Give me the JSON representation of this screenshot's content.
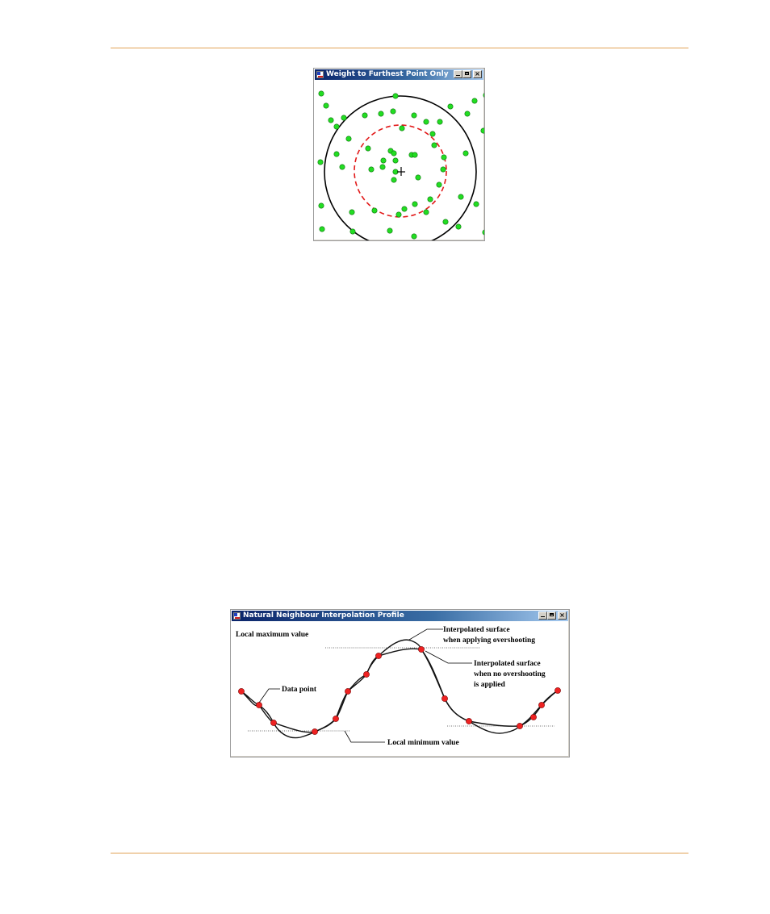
{
  "colors": {
    "rule": "#e1a256",
    "data_point_green": "#22dd22",
    "data_point_red": "#ee2222",
    "search_circle": "#000000",
    "dashed_circle": "#e21a1a"
  },
  "window1": {
    "title": "Weight to Furthest Point Only",
    "min_label": "",
    "max_label": "",
    "close_label": "×"
  },
  "window2": {
    "title": "Natural Neighbour Interpolation Profile",
    "min_label": "",
    "max_label": "",
    "close_label": "×",
    "annotations": {
      "local_max": "Local maximum value",
      "overshoot_line1": "Interpolated surface",
      "overshoot_line2": "when applying overshooting",
      "no_overshoot_line1": "Interpolated surface",
      "no_overshoot_line2": "when no overshooting",
      "no_overshoot_line3": "is applied",
      "data_point": "Data point",
      "local_min": "Local minimum value"
    }
  }
}
